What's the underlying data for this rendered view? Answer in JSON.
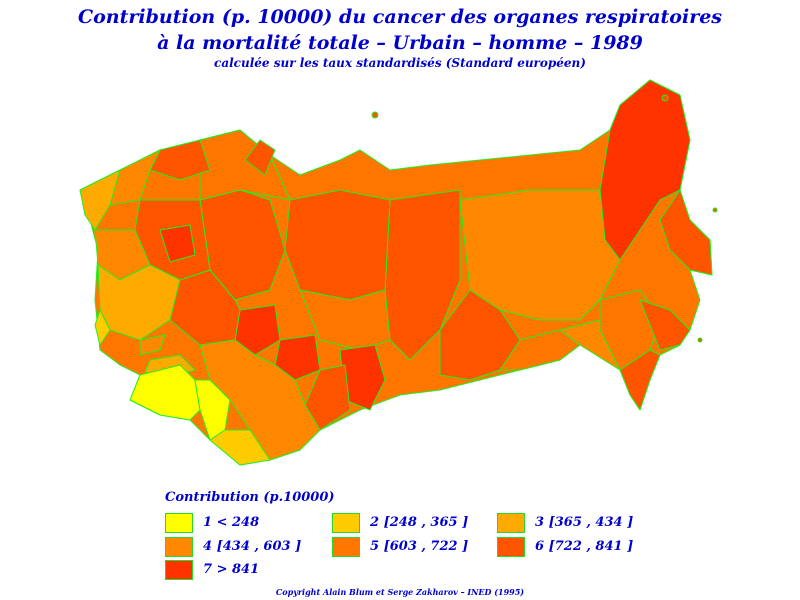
{
  "title": {
    "line1": "Contribution (p. 10000) du cancer des organes respiratoires",
    "line2": "à la mortalité totale – Urbain – homme – 1989",
    "line3": "calculée sur les taux standardisés (Standard européen)"
  },
  "legend": {
    "title": "Contribution (p.10000)",
    "classes": [
      {
        "label": "1  <  248",
        "color": "#ffff00"
      },
      {
        "label": "2 [248 ,  365 ]",
        "color": "#ffcc00"
      },
      {
        "label": "3 [365 ,  434 ]",
        "color": "#ffaa00"
      },
      {
        "label": "4 [434 ,  603 ]",
        "color": "#ff8800"
      },
      {
        "label": "5 [603 ,  722 ]",
        "color": "#ff7700"
      },
      {
        "label": "6 [722 ,  841 ]",
        "color": "#ff5500"
      },
      {
        "label": "7  >  841",
        "color": "#ff3300"
      }
    ]
  },
  "map": {
    "border_color": "#22ee22"
  },
  "copyright": "Copyright Alain Blum et Serge Zakharov – INED (1995)"
}
